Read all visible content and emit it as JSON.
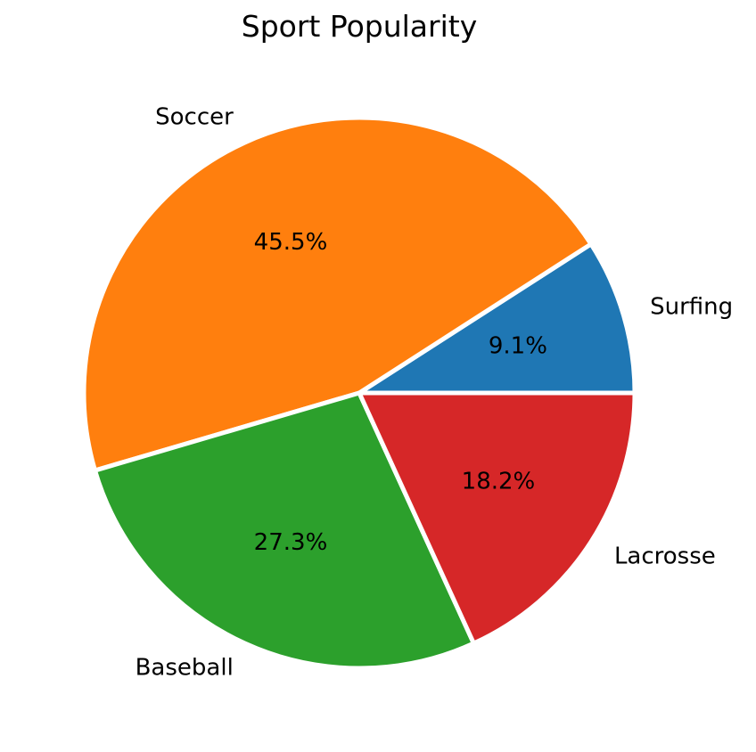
{
  "chart_data": {
    "type": "pie",
    "title": "Sport Popularity",
    "slices": [
      {
        "label": "Surfing",
        "value": 9.1,
        "pct_label": "9.1%",
        "color": "#1f77b4"
      },
      {
        "label": "Soccer",
        "value": 45.5,
        "pct_label": "45.5%",
        "color": "#ff7f0e"
      },
      {
        "label": "Baseball",
        "value": 27.3,
        "pct_label": "27.3%",
        "color": "#2ca02c"
      },
      {
        "label": "Lacrosse",
        "value": 18.2,
        "pct_label": "18.2%",
        "color": "#d62728"
      }
    ],
    "start_angle": 0,
    "direction": "counterclockwise",
    "edge_color": "#ffffff"
  }
}
